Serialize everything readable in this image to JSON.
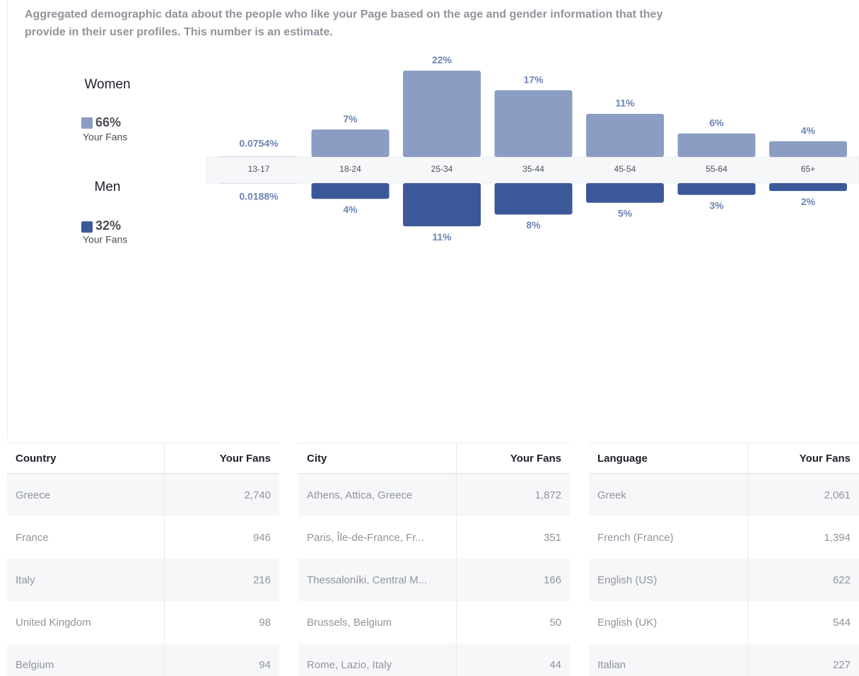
{
  "description": [
    "Aggregated demographic data about the people who like your Page based on the age and gender information that they",
    "provide in their user profiles. This number is an estimate."
  ],
  "chart_data": {
    "type": "bar",
    "categories": [
      "13-17",
      "18-24",
      "25-34",
      "35-44",
      "45-54",
      "55-64",
      "65+"
    ],
    "series": [
      {
        "name": "Women",
        "color": "#8b9dc3",
        "values": [
          0.0754,
          7,
          22,
          17,
          11,
          6,
          4
        ],
        "value_labels": [
          "0.0754%",
          "7%",
          "22%",
          "17%",
          "11%",
          "6%",
          "4%"
        ]
      },
      {
        "name": "Men",
        "color": "#3b5998",
        "values": [
          0.0188,
          4,
          11,
          8,
          5,
          3,
          2
        ],
        "value_labels": [
          "0.0188%",
          "4%",
          "11%",
          "8%",
          "5%",
          "3%",
          "2%"
        ]
      }
    ]
  },
  "legend": [
    {
      "share": "66%",
      "caption": "Your Fans"
    },
    {
      "share": "32%",
      "caption": "Your Fans"
    }
  ],
  "tables": [
    {
      "columns": [
        "Country",
        "Your Fans"
      ],
      "rows": [
        [
          "Greece",
          "2,740"
        ],
        [
          "France",
          "946"
        ],
        [
          "Italy",
          "216"
        ],
        [
          "United Kingdom",
          "98"
        ],
        [
          "Belgium",
          "94"
        ]
      ]
    },
    {
      "columns": [
        "City",
        "Your Fans"
      ],
      "rows": [
        [
          "Athens, Attica, Greece",
          "1,872"
        ],
        [
          "Paris, Île-de-France, Fr...",
          "351"
        ],
        [
          "Thessaloníki, Central M...",
          "166"
        ],
        [
          "Brussels, Belgium",
          "50"
        ],
        [
          "Rome, Lazio, Italy",
          "44"
        ]
      ]
    },
    {
      "columns": [
        "Language",
        "Your Fans"
      ],
      "rows": [
        [
          "Greek",
          "2,061"
        ],
        [
          "French (France)",
          "1,394"
        ],
        [
          "English (US)",
          "622"
        ],
        [
          "English (UK)",
          "544"
        ],
        [
          "Italian",
          "227"
        ]
      ]
    }
  ]
}
